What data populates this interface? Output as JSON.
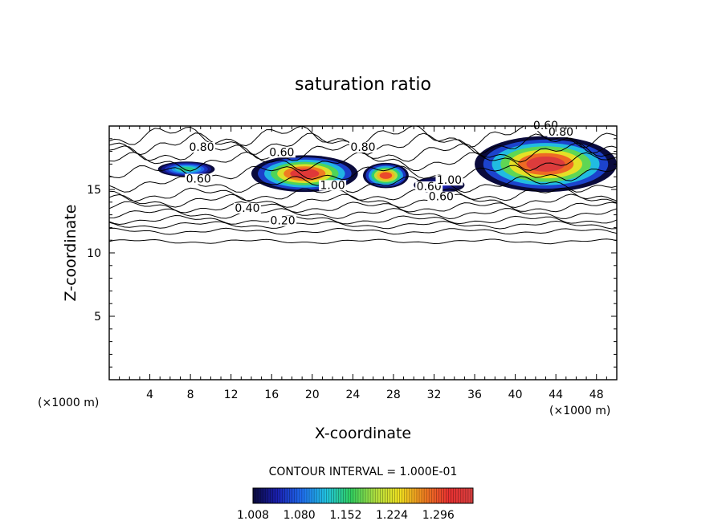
{
  "chart_data": {
    "type": "heatmap",
    "title": "saturation ratio",
    "xlabel": "X-coordinate",
    "ylabel": "Z-coordinate",
    "x_unit": "(×1000 m)",
    "x_unit_right": "(×1000 m)",
    "xlim": [
      0,
      50
    ],
    "ylim": [
      0,
      20
    ],
    "x_ticks": [
      4,
      8,
      12,
      16,
      20,
      24,
      28,
      32,
      36,
      40,
      44,
      48
    ],
    "y_ticks": [
      5,
      10,
      15
    ],
    "contour_interval_text": "CONTOUR INTERVAL = 1.000E-01",
    "contour_levels": [
      0.2,
      0.4,
      0.6,
      0.8,
      1.0
    ],
    "contour_labels": [
      {
        "text": "0.80",
        "x": 9.1,
        "y": 18.1
      },
      {
        "text": "0.60",
        "x": 8.8,
        "y": 15.6
      },
      {
        "text": "0.60",
        "x": 17.0,
        "y": 17.7
      },
      {
        "text": "0.80",
        "x": 25.0,
        "y": 18.1
      },
      {
        "text": "0.60",
        "x": 43.0,
        "y": 19.8
      },
      {
        "text": "0.80",
        "x": 44.5,
        "y": 19.3
      },
      {
        "text": "1.00",
        "x": 22.0,
        "y": 15.1
      },
      {
        "text": "0.60",
        "x": 31.5,
        "y": 15.0
      },
      {
        "text": "1.00",
        "x": 33.5,
        "y": 15.5
      },
      {
        "text": "0.60",
        "x": 32.7,
        "y": 14.2
      },
      {
        "text": "0.40",
        "x": 13.6,
        "y": 13.3
      },
      {
        "text": "0.20",
        "x": 17.1,
        "y": 12.3
      }
    ],
    "colorbar": {
      "min": 1.008,
      "max": 1.35,
      "tick_labels": [
        "1.008",
        "1.080",
        "1.152",
        "1.224",
        "1.296"
      ],
      "colormap": [
        "#0a0a3c",
        "#1a1fb0",
        "#1f6ef0",
        "#21c4e0",
        "#30d060",
        "#b0e040",
        "#f0e020",
        "#f08020",
        "#e83030",
        "#d84040"
      ]
    },
    "supersaturated_regions": [
      {
        "x": [
          4.8,
          10.4
        ],
        "z": [
          16.0,
          17.2
        ],
        "peak": 1.15
      },
      {
        "x": [
          14.0,
          24.5
        ],
        "z": [
          14.8,
          17.7
        ],
        "peak": 1.33
      },
      {
        "x": [
          25.0,
          29.5
        ],
        "z": [
          15.1,
          17.1
        ],
        "peak": 1.3
      },
      {
        "x": [
          30.0,
          35.0
        ],
        "z": [
          14.7,
          16.0
        ],
        "peak": 1.05
      },
      {
        "x": [
          36.0,
          50.0
        ],
        "z": [
          14.8,
          19.2
        ],
        "peak": 1.34
      }
    ]
  }
}
